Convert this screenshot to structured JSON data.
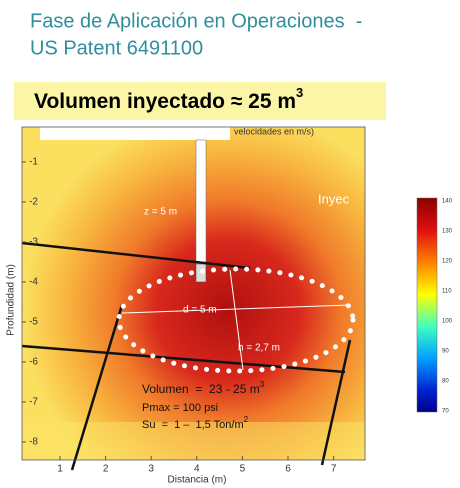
{
  "title": {
    "lines": [
      "Fase de Aplicación en Operaciones  -",
      "US Patent 6491100"
    ]
  },
  "banner": {
    "text": "Volumen inyectado ≈ 25 m",
    "sup": "3"
  },
  "figure": {
    "caption": "velocidades en m/s)",
    "overlay": "Inyec",
    "y_label": "Profundidad (m)",
    "x_label": "Distancia (m)",
    "yticks": [
      -1,
      -2,
      -3,
      -4,
      -5,
      -6,
      -7,
      -8
    ],
    "xticks": [
      1,
      2,
      3,
      4,
      5,
      6,
      7
    ],
    "annotations": {
      "depth": "z = 5 m",
      "diameter": "d = 5 m",
      "height": "h = 2,7 m",
      "volume": {
        "text": "Volumen  =  23 - 25 m",
        "sup": "3"
      },
      "pressure": "Pmax = 100 psi",
      "strength": {
        "text": "Su  =  1 –  1,5 Ton/m",
        "sup": "2"
      }
    }
  },
  "colorbar": {
    "ticks": [
      140,
      130,
      120,
      110,
      100,
      90,
      80,
      70
    ]
  }
}
